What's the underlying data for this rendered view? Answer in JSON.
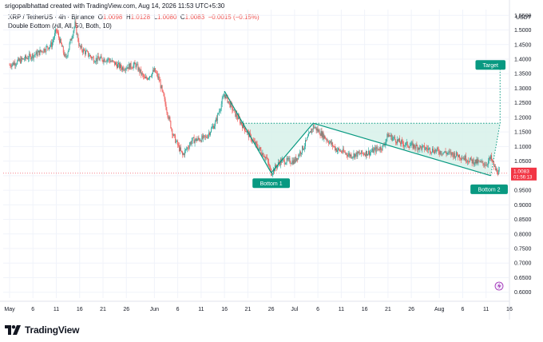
{
  "header": {
    "credit": "srigopalbhattad created with TradingView.com, Aug 14, 2026 11:53 UTC+5:30",
    "symbol": "XRP / TetherUS · 4h · Binance",
    "ohlc": [
      {
        "k": "O",
        "v": "1.0098"
      },
      {
        "k": "H",
        "v": "1.0128"
      },
      {
        "k": "L",
        "v": "1.0080"
      },
      {
        "k": "C",
        "v": "1.0083"
      }
    ],
    "change": "−0.0015 (−0.15%)",
    "indicator": "Double Bottom (All, All, 50, Both, 10)"
  },
  "footer": {
    "brand": "TradingView"
  },
  "colors": {
    "up": "#26a69a",
    "down": "#ef5350",
    "pattern": "#089981",
    "pattern_fill": "#d7f1ea",
    "price_label": "#f23645",
    "grid": "#f0f3fa"
  },
  "chart_data": {
    "type": "candlestick",
    "currency": "USDT",
    "y_ticks": [
      "1.5500",
      "1.5000",
      "1.4500",
      "1.4000",
      "1.3500",
      "1.3000",
      "1.2500",
      "1.2000",
      "1.1500",
      "1.1000",
      "1.0500",
      "1.0000",
      "0.9500",
      "0.9000",
      "0.8500",
      "0.8000",
      "0.7500",
      "0.7000",
      "0.6500",
      "0.6000"
    ],
    "ylim": [
      0.58,
      1.57
    ],
    "x_ticks": [
      "May",
      "6",
      "11",
      "16",
      "21",
      "26",
      "Jun",
      "6",
      "11",
      "16",
      "21",
      "26",
      "Jul",
      "6",
      "11",
      "16",
      "21",
      "26",
      "Aug",
      "6",
      "11",
      "16"
    ],
    "last_price": "1.0083",
    "countdown": "01:56:13",
    "price_path": [
      [
        "2026-05-01",
        1.38
      ],
      [
        "2026-05-04",
        1.4
      ],
      [
        "2026-05-07",
        1.42
      ],
      [
        "2026-05-10",
        1.45
      ],
      [
        "2026-05-11",
        1.5
      ],
      [
        "2026-05-13",
        1.4
      ],
      [
        "2026-05-15",
        1.52
      ],
      [
        "2026-05-16",
        1.44
      ],
      [
        "2026-05-19",
        1.4
      ],
      [
        "2026-05-22",
        1.4
      ],
      [
        "2026-05-25",
        1.37
      ],
      [
        "2026-05-28",
        1.38
      ],
      [
        "2026-05-30",
        1.33
      ],
      [
        "2026-06-01",
        1.36
      ],
      [
        "2026-06-02",
        1.33
      ],
      [
        "2026-06-05",
        1.14
      ],
      [
        "2026-06-07",
        1.07
      ],
      [
        "2026-06-09",
        1.12
      ],
      [
        "2026-06-12",
        1.13
      ],
      [
        "2026-06-14",
        1.18
      ],
      [
        "2026-06-16",
        1.28
      ],
      [
        "2026-06-18",
        1.22
      ],
      [
        "2026-06-20",
        1.17
      ],
      [
        "2026-06-22",
        1.12
      ],
      [
        "2026-06-25",
        1.06
      ],
      [
        "2026-06-26",
        1.01
      ],
      [
        "2026-06-28",
        1.05
      ],
      [
        "2026-07-01",
        1.05
      ],
      [
        "2026-07-03",
        1.1
      ],
      [
        "2026-07-05",
        1.17
      ],
      [
        "2026-07-07",
        1.14
      ],
      [
        "2026-07-10",
        1.09
      ],
      [
        "2026-07-13",
        1.07
      ],
      [
        "2026-07-17",
        1.08
      ],
      [
        "2026-07-20",
        1.1
      ],
      [
        "2026-07-21",
        1.14
      ],
      [
        "2026-07-24",
        1.11
      ],
      [
        "2026-07-27",
        1.1
      ],
      [
        "2026-07-30",
        1.09
      ],
      [
        "2026-08-02",
        1.08
      ],
      [
        "2026-08-05",
        1.07
      ],
      [
        "2026-08-08",
        1.05
      ],
      [
        "2026-08-11",
        1.04
      ],
      [
        "2026-08-12",
        1.06
      ],
      [
        "2026-08-13",
        1.02
      ],
      [
        "2026-08-14",
        1.0083
      ]
    ],
    "pattern": {
      "name": "Double Bottom",
      "vertices": [
        [
          "2026-06-16",
          1.29
        ],
        [
          "2026-06-26",
          1.01
        ],
        [
          "2026-07-05",
          1.18
        ],
        [
          "2026-08-12",
          1.0
        ],
        [
          "2026-08-14",
          1.18
        ]
      ],
      "neckline": 1.18,
      "target": 1.38,
      "labels": [
        {
          "text": "Bottom 1",
          "date": "2026-06-26",
          "price": 1.01
        },
        {
          "text": "Bottom 2",
          "date": "2026-08-12",
          "price": 1.0
        },
        {
          "text": "Target",
          "date": "2026-08-14",
          "price": 1.38
        }
      ]
    }
  }
}
